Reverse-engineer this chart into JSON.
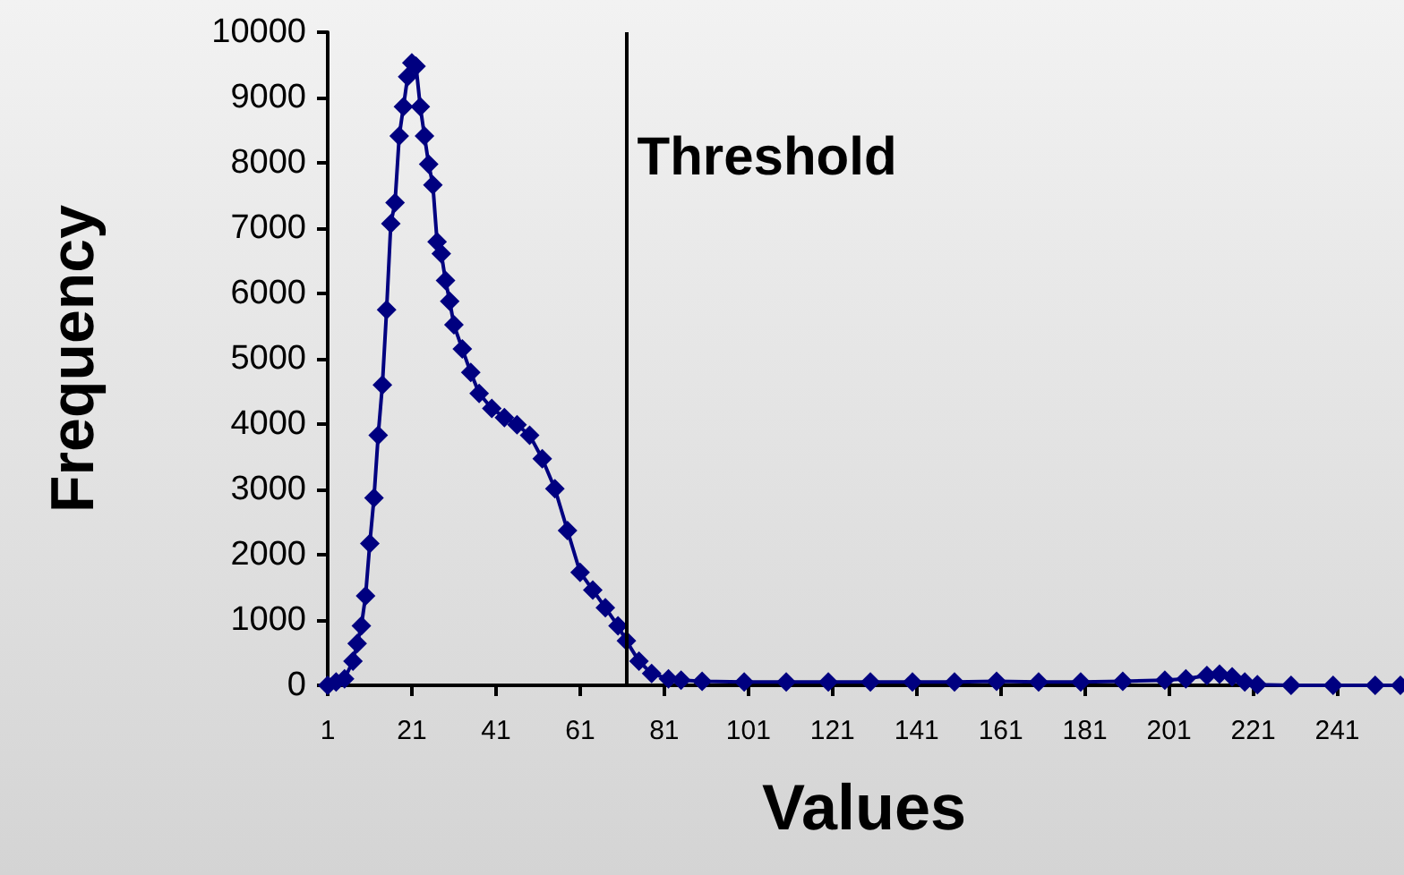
{
  "chart_data": {
    "type": "line",
    "xlabel": "Values",
    "ylabel": "Frequency",
    "x": [
      1,
      3,
      5,
      7,
      8,
      9,
      10,
      11,
      12,
      13,
      14,
      15,
      16,
      17,
      18,
      19,
      20,
      21,
      22,
      23,
      24,
      25,
      26,
      27,
      28,
      29,
      30,
      31,
      33,
      35,
      37,
      40,
      43,
      46,
      49,
      52,
      55,
      58,
      61,
      64,
      67,
      70,
      72,
      75,
      78,
      82,
      85,
      90,
      100,
      110,
      120,
      130,
      140,
      150,
      160,
      170,
      180,
      190,
      200,
      205,
      210,
      213,
      216,
      219,
      222,
      230,
      240,
      250,
      256
    ],
    "series": [
      {
        "color": "#000080",
        "values": [
          0,
          50,
          100,
          370,
          640,
          910,
          1370,
          2170,
          2870,
          3830,
          4600,
          5750,
          7070,
          7390,
          8410,
          8860,
          9320,
          9530,
          9480,
          8860,
          8410,
          7980,
          7660,
          6790,
          6610,
          6200,
          5880,
          5520,
          5150,
          4790,
          4470,
          4240,
          4100,
          3990,
          3830,
          3470,
          3010,
          2370,
          1730,
          1460,
          1190,
          910,
          680,
          370,
          180,
          100,
          80,
          60,
          50,
          50,
          50,
          50,
          50,
          50,
          60,
          50,
          50,
          60,
          80,
          100,
          150,
          170,
          130,
          50,
          10,
          0,
          0,
          0,
          0
        ]
      }
    ],
    "xlim": [
      1,
      256
    ],
    "xticks": [
      1,
      21,
      41,
      61,
      81,
      101,
      121,
      141,
      161,
      181,
      201,
      221,
      241
    ],
    "ylim": [
      0,
      10000
    ],
    "yticks": [
      0,
      1000,
      2000,
      3000,
      4000,
      5000,
      6000,
      7000,
      8000,
      9000,
      10000
    ],
    "grid": false,
    "marker": "diamond",
    "line_style": "solid",
    "ref_lines": [
      {
        "axis": "x",
        "value": 72,
        "label": "Threshold",
        "color": "#000000"
      }
    ]
  }
}
